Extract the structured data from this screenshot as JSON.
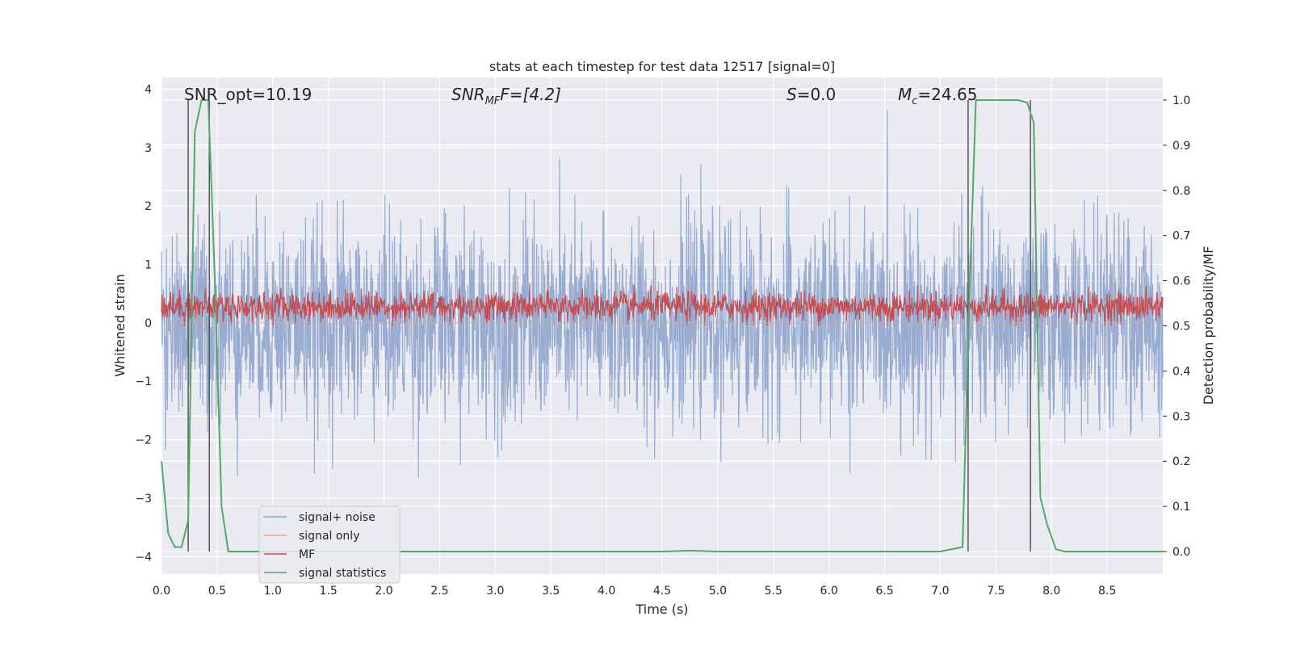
{
  "chart_data": {
    "type": "line",
    "title": "stats at each timestep for test data 12517 [signal=0]",
    "xlabel": "Time (s)",
    "ylabel": "Whitened strain",
    "y2label": "Detection probability/MF",
    "xlim": [
      0.0,
      9.0
    ],
    "ylim": [
      -4.3,
      4.2
    ],
    "y2lim": [
      -0.05,
      1.05
    ],
    "xticks": [
      "0.0",
      "0.5",
      "1.0",
      "1.5",
      "2.0",
      "2.5",
      "3.0",
      "3.5",
      "4.0",
      "4.5",
      "5.0",
      "5.5",
      "6.0",
      "6.5",
      "7.0",
      "7.5",
      "8.0",
      "8.5"
    ],
    "yticks": [
      "4",
      "3",
      "2",
      "1",
      "0",
      "−1",
      "−2",
      "−3",
      "−4"
    ],
    "y2ticks": [
      "1.0",
      "0.9",
      "0.8",
      "0.7",
      "0.6",
      "0.5",
      "0.4",
      "0.3",
      "0.2",
      "0.1",
      "0.0"
    ],
    "annotations": {
      "snr_opt": "SNR_opt=10.19",
      "snr_mf_main": "SNR",
      "snr_mf_sub": "MF",
      "snr_mf_value": "F=[4.2]",
      "s_main": "S",
      "s_value": "=0.0",
      "mc_main": "M",
      "mc_sub": "c",
      "mc_value": "=24.65"
    },
    "legend": {
      "location": "lower-left",
      "entries": [
        {
          "label": "signal+ noise",
          "color": "#8fa4cc"
        },
        {
          "label": "signal only",
          "color": "#e8a585"
        },
        {
          "label": "MF",
          "color": "#c44e52"
        },
        {
          "label": "signal statistics",
          "color": "#55a868"
        }
      ]
    },
    "series": [
      {
        "name": "signal+ noise",
        "kind": "noise",
        "color": "#8fa4cc",
        "t_range": [
          0.0,
          9.0
        ],
        "mean": 0.0,
        "sigma": 0.85,
        "max": 3.85,
        "min": -3.45
      },
      {
        "name": "signal only",
        "kind": "flat",
        "color": "#e8a585",
        "value": 0.0
      },
      {
        "name": "MF",
        "kind": "noise",
        "color": "#c44e52",
        "t_range": [
          0.0,
          9.0
        ],
        "mean": 0.28,
        "sigma": 0.13,
        "max": 0.95,
        "min": -0.05
      },
      {
        "name": "signal statistics",
        "kind": "line",
        "axis": "right",
        "color": "#55a868",
        "x": [
          0.0,
          0.06,
          0.12,
          0.18,
          0.24,
          0.3,
          0.36,
          0.42,
          0.48,
          0.54,
          0.6,
          1.0,
          2.0,
          3.0,
          4.0,
          4.5,
          4.75,
          5.0,
          6.0,
          7.0,
          7.2,
          7.26,
          7.32,
          7.5,
          7.7,
          7.78,
          7.84,
          7.9,
          7.96,
          8.04,
          8.12,
          9.0
        ],
        "y": [
          0.2,
          0.04,
          0.01,
          0.01,
          0.07,
          0.93,
          1.0,
          1.0,
          0.6,
          0.1,
          0.0,
          0.0,
          0.0,
          0.0,
          0.0,
          0.0,
          0.002,
          0.0,
          0.0,
          0.0,
          0.01,
          0.55,
          1.0,
          1.0,
          1.0,
          0.995,
          0.95,
          0.12,
          0.06,
          0.005,
          0.0,
          0.0
        ]
      }
    ],
    "vlines": [
      0.24,
      0.43,
      7.25,
      7.81
    ],
    "vlines_y2": [
      0.0,
      1.0
    ]
  }
}
